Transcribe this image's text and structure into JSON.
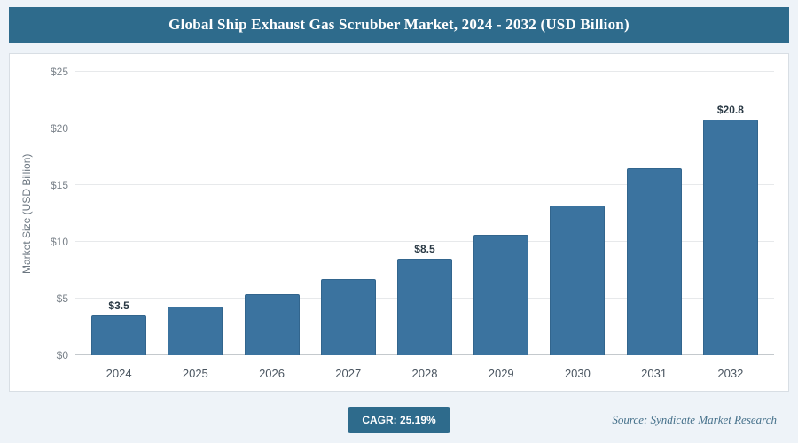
{
  "header": {
    "title": "Global Ship Exhaust Gas Scrubber Market, 2024 - 2032 (USD Billion)"
  },
  "chart_data": {
    "type": "bar",
    "title": "Global Ship Exhaust Gas Scrubber Market, 2024 - 2032 (USD Billion)",
    "categories": [
      "2024",
      "2025",
      "2026",
      "2027",
      "2028",
      "2029",
      "2030",
      "2031",
      "2032"
    ],
    "values": [
      3.5,
      4.3,
      5.4,
      6.7,
      8.5,
      10.6,
      13.2,
      16.5,
      20.8
    ],
    "labels": [
      "$3.5",
      "",
      "",
      "",
      "$8.5",
      "",
      "",
      "",
      "$20.8"
    ],
    "xlabel": "",
    "ylabel": "Market Size (USD Billion)",
    "ylim": [
      0,
      25
    ],
    "yticks": [
      "$0",
      "$5",
      "$10",
      "$15",
      "$20",
      "$25"
    ],
    "grid": "horizontal",
    "legend": "none"
  },
  "footer": {
    "cagr_label": "CAGR: 25.19%",
    "source": "Source: Syndicate Market Research"
  },
  "colors": {
    "accent": "#2e6b8c",
    "bar": "#3b739f",
    "bar_edge": "#32658d",
    "page_background": "#eef3f8",
    "plot_background": "#ffffff"
  }
}
